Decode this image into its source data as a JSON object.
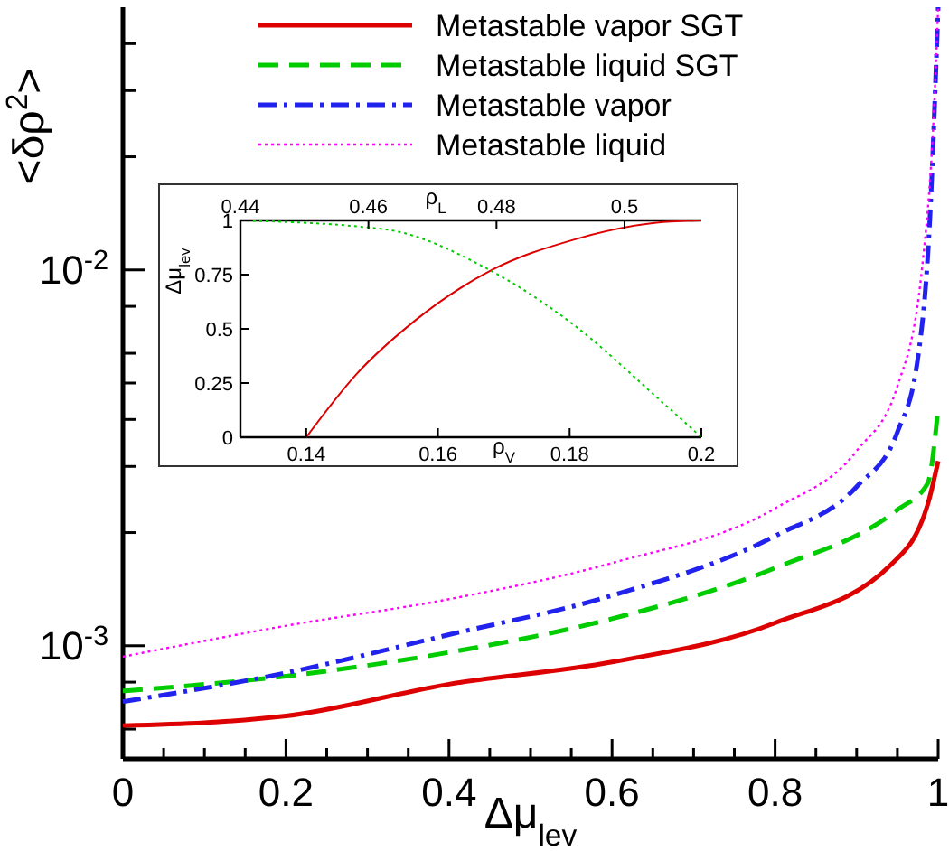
{
  "chart_data": [
    {
      "type": "line",
      "xlabel": "Δμ$_{lev}$",
      "ylabel": "<δρ$^{2}$>",
      "log": "y",
      "legend": "top right",
      "xlim": [
        0,
        1
      ],
      "ylim": [
        0.0005,
        0.05
      ],
      "xticks": [
        0,
        {
          "value": 0.05,
          "label": null
        },
        {
          "value": 0.1,
          "label": null
        },
        {
          "value": 0.15,
          "label": null
        },
        0.2,
        {
          "value": 0.25,
          "label": null
        },
        {
          "value": 0.3,
          "label": null
        },
        {
          "value": 0.35,
          "label": null
        },
        0.4,
        {
          "value": 0.45,
          "label": null
        },
        {
          "value": 0.5,
          "label": null
        },
        {
          "value": 0.55,
          "label": null
        },
        0.6,
        {
          "value": 0.65,
          "label": null
        },
        {
          "value": 0.7,
          "label": null
        },
        {
          "value": 0.75,
          "label": null
        },
        0.8,
        {
          "value": 0.85,
          "label": null
        },
        {
          "value": 0.9,
          "label": null
        },
        {
          "value": 0.95,
          "label": null
        },
        1
      ],
      "yticks": [
        {
          "value": 0.0006,
          "label": null
        },
        {
          "value": 0.0008,
          "label": null
        },
        {
          "value": 0.001,
          "label": "10$^{-3}$"
        },
        {
          "value": 0.002,
          "label": null
        },
        {
          "value": 0.003,
          "label": null
        },
        {
          "value": 0.004,
          "label": null
        },
        {
          "value": 0.005,
          "label": null
        },
        {
          "value": 0.006,
          "label": null
        },
        {
          "value": 0.008,
          "label": null
        },
        {
          "value": 0.01,
          "label": "10$^{-2}$"
        },
        {
          "value": 0.02,
          "label": null
        },
        {
          "value": 0.03,
          "label": null
        },
        {
          "value": 0.04,
          "label": null
        }
      ],
      "series": [
        {
          "name": "Metastable vapor SGT",
          "color": "#dd0000",
          "line_style": "solid",
          "x": [
            0,
            0.2,
            0.4,
            0.6,
            0.8,
            0.943,
            0.987,
            1
          ],
          "values": [
            0.000613,
            0.00065,
            0.00079,
            0.000905,
            0.00115,
            0.00165,
            0.00237,
            0.0031
          ]
        },
        {
          "name": "Metastable liquid SGT",
          "color": "#00cc00",
          "line_style": "dashed",
          "x": [
            0,
            0.2,
            0.4,
            0.6,
            0.8,
            0.95,
            0.987,
            1
          ],
          "values": [
            0.000758,
            0.00083,
            0.00096,
            0.00118,
            0.00161,
            0.0023,
            0.0027,
            0.0043
          ]
        },
        {
          "name": "Metastable vapor",
          "color": "#2222ee",
          "line_style": "dashdot",
          "x": [
            0,
            0.2,
            0.4,
            0.6,
            0.8,
            0.9,
            0.95,
            0.975,
            0.99,
            1
          ],
          "values": [
            0.00071,
            0.000847,
            0.00107,
            0.00136,
            0.00196,
            0.00265,
            0.0037,
            0.0058,
            0.0139,
            0.05
          ]
        },
        {
          "name": "Metastable liquid",
          "color": "#ff00ff",
          "line_style": "dotted",
          "x": [
            0,
            0.2,
            0.4,
            0.6,
            0.8,
            0.9,
            0.95,
            0.98,
            0.995,
            1
          ],
          "values": [
            0.000935,
            0.00113,
            0.00133,
            0.00166,
            0.00232,
            0.0033,
            0.0049,
            0.01,
            0.027,
            0.05
          ]
        }
      ]
    },
    {
      "type": "line",
      "xlabel": "ρ$_{V}$",
      "x2label": "ρ$_{L}$",
      "ylabel": "Δμ$_{lev}$",
      "xlim": [
        0.13,
        0.2
      ],
      "xticks": [
        0.14,
        0.16,
        0.18,
        0.2
      ],
      "x2lim": [
        0.44,
        0.512
      ],
      "x2ticks": [
        0.44,
        0.46,
        0.48,
        0.5
      ],
      "ylim": [
        0,
        1
      ],
      "yticks": [
        0,
        0.25,
        0.5,
        0.75,
        1
      ],
      "series": [
        {
          "color": "#dd0000",
          "line_style": "solid",
          "x": [
            0.14,
            0.1476,
            0.1566,
            0.1681,
            0.1805,
            0.1932,
            0.2
          ],
          "values": [
            0,
            0.29,
            0.54,
            0.77,
            0.91,
            0.99,
            1
          ]
        },
        {
          "color": "#00cc00",
          "line_style": "dotted",
          "axis": "x2",
          "x": [
            0.44,
            0.4623,
            0.479,
            0.492,
            0.5052,
            0.512
          ],
          "values": [
            1,
            0.96,
            0.77,
            0.52,
            0.18,
            0
          ]
        }
      ]
    }
  ]
}
